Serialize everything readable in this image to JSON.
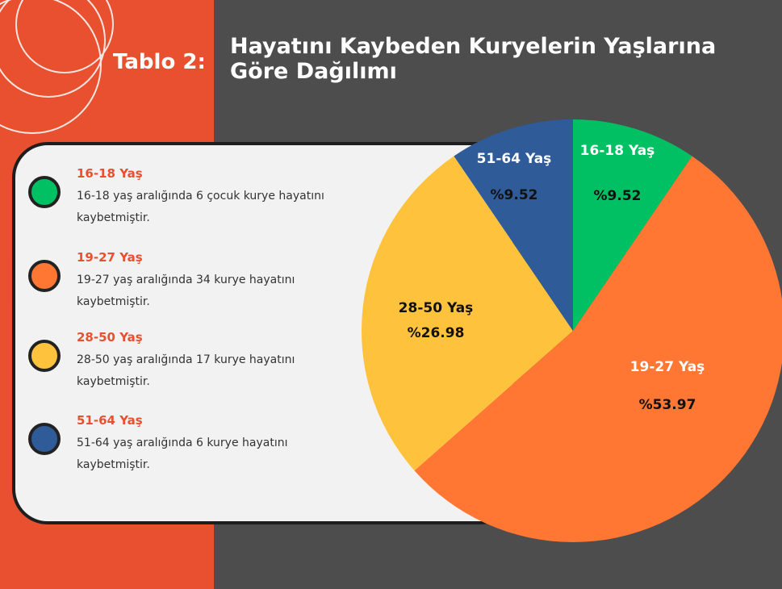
{
  "chart_data": {
    "type": "pie",
    "table_label": "Tablo 2:",
    "title": "Hayatını Kaybeden Kuryelerin Yaşlarına Göre Dağılımı",
    "categories": [
      "16-18 Yaş",
      "19-27 Yaş",
      "28-50 Yaş",
      "51-64 Yaş"
    ],
    "values": [
      9.52,
      53.97,
      26.98,
      9.52
    ],
    "value_labels": [
      "%9.52",
      "%53.97",
      "%26.98",
      "%9.52"
    ],
    "colors": [
      "#00c064",
      "#ff7733",
      "#ffc23d",
      "#2f5b99"
    ],
    "descriptions": [
      "16-18 yaş aralığında 6 çocuk kurye hayatını kaybetmiştir.",
      "19-27 yaş aralığında 34 kurye hayatını kaybetmiştir.",
      "28-50 yaş aralığında 17 kurye hayatını kaybetmiştir.",
      "51-64 yaş aralığında 6 kurye hayatını kaybetmiştir."
    ]
  }
}
